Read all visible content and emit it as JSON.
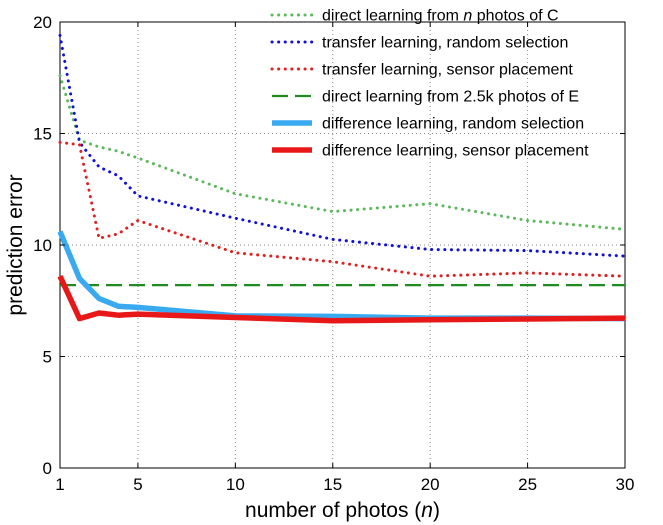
{
  "chart_data": {
    "type": "line",
    "xlabel": "number of photos (n)",
    "xlabel_parts": [
      "number of photos (",
      "n",
      ")"
    ],
    "ylabel": "prediction error",
    "xlim": [
      1,
      30
    ],
    "ylim": [
      0,
      20
    ],
    "xticks": [
      1,
      5,
      10,
      15,
      20,
      25,
      30
    ],
    "yticks": [
      0,
      5,
      10,
      15,
      20
    ],
    "grid": true,
    "legend_position": "top-right",
    "series": [
      {
        "name": "direct learning from n photos of C",
        "name_parts": [
          "direct learning from ",
          "n",
          " photos of C"
        ],
        "color": "#5cb85c",
        "style": "dotted",
        "x": [
          1,
          2,
          3,
          4,
          5,
          10,
          15,
          20,
          25,
          30
        ],
        "y": [
          17.6,
          14.7,
          14.4,
          14.2,
          13.9,
          12.3,
          11.5,
          11.85,
          11.1,
          10.7
        ]
      },
      {
        "name": "transfer learning, random selection",
        "color": "#1010d8",
        "style": "dotted",
        "x": [
          1,
          2,
          3,
          4,
          5,
          10,
          15,
          20,
          25,
          30
        ],
        "y": [
          19.4,
          14.6,
          13.5,
          13.1,
          12.2,
          11.2,
          10.25,
          9.8,
          9.75,
          9.5
        ]
      },
      {
        "name": "transfer learning, sensor placement",
        "color": "#e02020",
        "style": "dotted",
        "x": [
          1,
          2,
          3,
          4,
          5,
          10,
          15,
          20,
          25,
          30
        ],
        "y": [
          14.6,
          14.5,
          10.3,
          10.5,
          11.1,
          9.65,
          9.25,
          8.6,
          8.75,
          8.6
        ]
      },
      {
        "name": "direct learning from 2.5k photos of E",
        "color": "#1e8c1e",
        "style": "dashed",
        "x": [
          1,
          30
        ],
        "y": [
          8.2,
          8.2
        ]
      },
      {
        "name": "difference learning, random selection",
        "color": "#3aaaf0",
        "style": "solid-thick",
        "x": [
          1,
          2,
          3,
          4,
          5,
          10,
          15,
          20,
          25,
          30
        ],
        "y": [
          10.6,
          8.5,
          7.6,
          7.25,
          7.2,
          6.82,
          6.8,
          6.72,
          6.72,
          6.7
        ]
      },
      {
        "name": "difference learning, sensor placement",
        "color": "#e81818",
        "style": "solid-thick",
        "x": [
          1,
          2,
          3,
          4,
          5,
          10,
          15,
          20,
          25,
          30
        ],
        "y": [
          8.6,
          6.7,
          6.95,
          6.85,
          6.9,
          6.75,
          6.6,
          6.65,
          6.68,
          6.72
        ]
      }
    ]
  }
}
